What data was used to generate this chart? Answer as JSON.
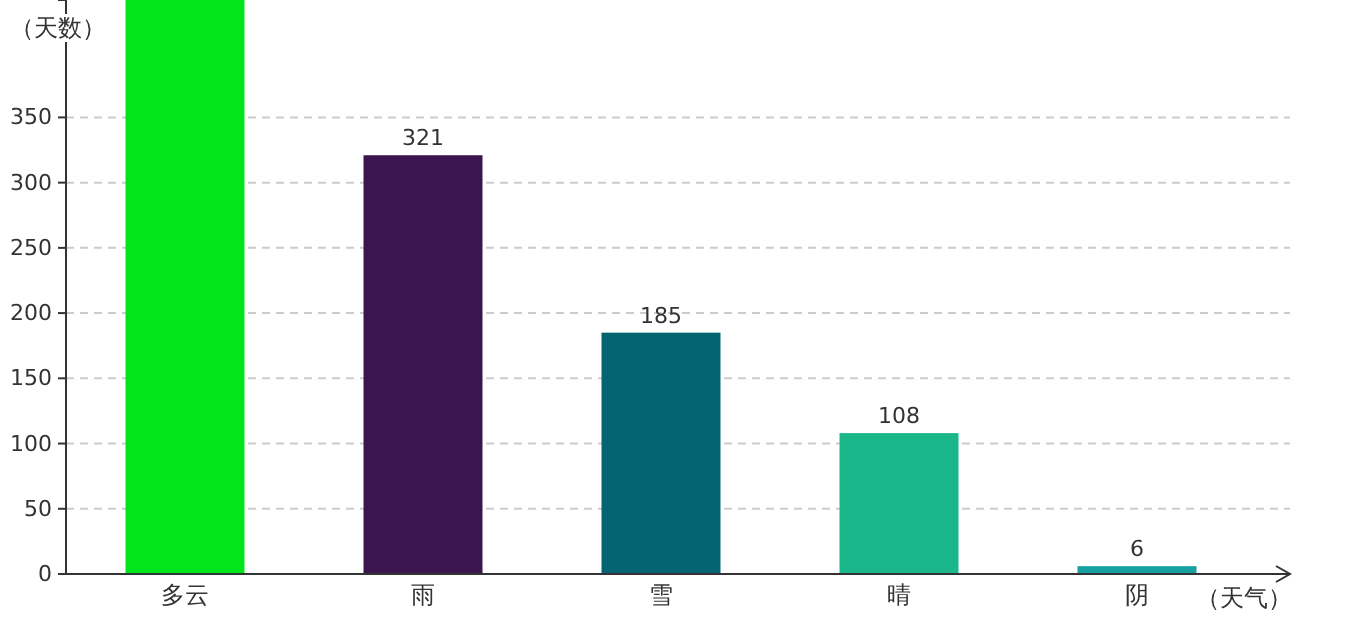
{
  "chart_data": {
    "type": "bar",
    "xlabel": "（天气）",
    "ylabel": "（天数）",
    "categories": [
      "多云",
      "雨",
      "雪",
      "晴",
      "阴"
    ],
    "values": [
      440,
      321,
      185,
      108,
      6
    ],
    "colors": [
      "#00e61a",
      "#3b154d",
      "#046472",
      "#1ab78b",
      "#16a0a0"
    ],
    "value_labels": [
      null,
      "321",
      "185",
      "108",
      "6"
    ],
    "ylim": [
      0,
      440
    ],
    "yticks": [
      0,
      50,
      100,
      150,
      200,
      250,
      300,
      350
    ],
    "grid": "y"
  }
}
